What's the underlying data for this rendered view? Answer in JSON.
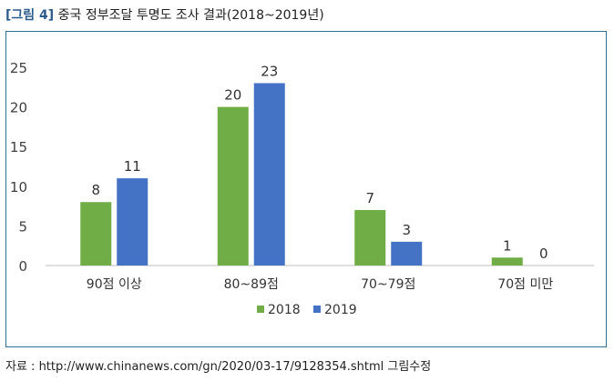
{
  "title": {
    "figure_label": "[그림 4]",
    "text": "중국 정부조달 투명도 조사 결과(2018~2019년)"
  },
  "source": "자료 : http://www.chinanews.com/gn/2020/03-17/9128354.shtml  그림수정",
  "colors": {
    "s2018": "#70ad47",
    "s2019": "#4472c4",
    "frame": "#2f6f8f",
    "axis": "#bfbfbf"
  },
  "chart_data": {
    "type": "bar",
    "categories": [
      "90점 이상",
      "80~89점",
      "70~79점",
      "70점 미만"
    ],
    "series": [
      {
        "name": "2018",
        "values": [
          8,
          20,
          7,
          1
        ]
      },
      {
        "name": "2019",
        "values": [
          11,
          23,
          3,
          0
        ]
      }
    ],
    "ylim": [
      0,
      25
    ],
    "yticks": [
      "0",
      "5",
      "10",
      "15",
      "20",
      "25"
    ],
    "grid": false,
    "legend": "bottom-center"
  }
}
